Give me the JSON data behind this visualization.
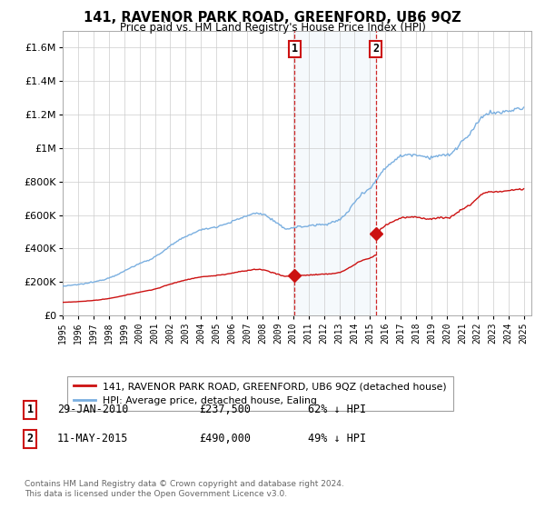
{
  "title": "141, RAVENOR PARK ROAD, GREENFORD, UB6 9QZ",
  "subtitle": "Price paid vs. HM Land Registry's House Price Index (HPI)",
  "legend_line1": "141, RAVENOR PARK ROAD, GREENFORD, UB6 9QZ (detached house)",
  "legend_line2": "HPI: Average price, detached house, Ealing",
  "transaction1_label": "1",
  "transaction1_date": "29-JAN-2010",
  "transaction1_price": "£237,500",
  "transaction1_hpi": "62% ↓ HPI",
  "transaction1_year": 2010.08,
  "transaction1_value": 237500,
  "transaction2_label": "2",
  "transaction2_date": "11-MAY-2015",
  "transaction2_price": "£490,000",
  "transaction2_hpi": "49% ↓ HPI",
  "transaction2_year": 2015.37,
  "transaction2_value": 490000,
  "footer": "Contains HM Land Registry data © Crown copyright and database right 2024.\nThis data is licensed under the Open Government Licence v3.0.",
  "hpi_color": "#7aafe0",
  "price_color": "#cc1111",
  "vline_color": "#cc1111",
  "shade_color": "#d8e8f5",
  "background_color": "#ffffff",
  "ylim_max": 1700000,
  "xmin": 1995,
  "xmax": 2025.5
}
